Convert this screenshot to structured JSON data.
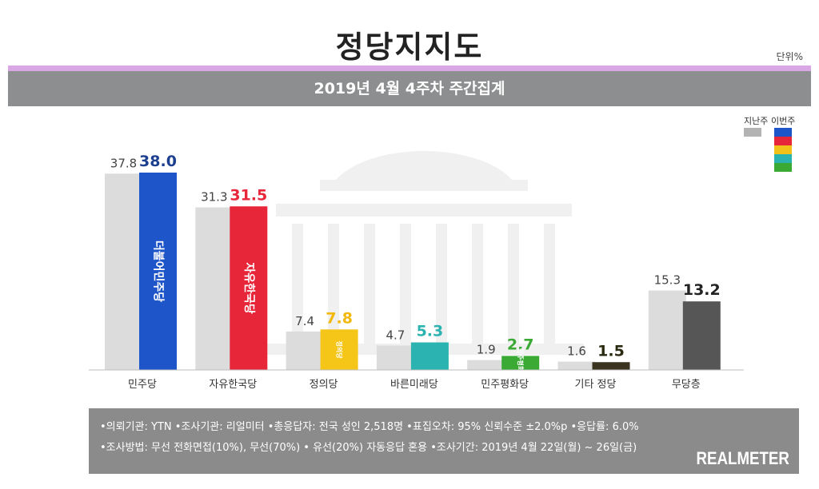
{
  "title": "정당지지도",
  "unit": "단위%",
  "subtitle": "2019년 4월 4주차 주간집계",
  "legend": {
    "previous_label": "지난주",
    "current_label": "이번주",
    "previous_color": "#b3b3b3",
    "current_colors": [
      "#1e56c9",
      "#e8263a",
      "#f2c21b",
      "#2ab3b0",
      "#3aaa35"
    ]
  },
  "chart_data": {
    "type": "bar",
    "categories": [
      "민주당",
      "자유한국당",
      "정의당",
      "바른미래당",
      "민주평화당",
      "기타 정당",
      "무당층"
    ],
    "series": [
      {
        "name": "지난주",
        "values": [
          37.8,
          31.3,
          7.4,
          4.7,
          1.9,
          1.6,
          15.3
        ],
        "color": "#dcdcdc"
      },
      {
        "name": "이번주",
        "values": [
          38.0,
          31.5,
          7.8,
          5.3,
          2.7,
          1.5,
          13.2
        ],
        "colors": [
          "#1e56c9",
          "#e8263a",
          "#f5c518",
          "#2ab3b0",
          "#3aaa35",
          "#3a3320",
          "#565656"
        ],
        "label_colors": [
          "#1d3f8f",
          "#e8263a",
          "#f2b90c",
          "#2ab3b0",
          "#3aaa35",
          "#2a2a10",
          "#222222"
        ]
      }
    ],
    "bar_labels": [
      "더불어민주당",
      "자유한국당",
      "정의당",
      "",
      "민주평화당",
      "",
      ""
    ],
    "ylim": [
      0,
      40
    ]
  },
  "footer": {
    "line1": "•의뢰기관: YTN •조사기관: 리얼미터 •총응답자: 전국 성인 2,518명 •표집오차: 95% 신뢰수준 ±2.0%p •응답률: 6.0%",
    "line2": "•조사방법: 무선 전화면접(10%), 무선(70%) • 유선(20%) 자동응답 혼용 •조사기간: 2019년 4월 22일(월) ~ 26일(금)",
    "logo": "REALMETER"
  }
}
